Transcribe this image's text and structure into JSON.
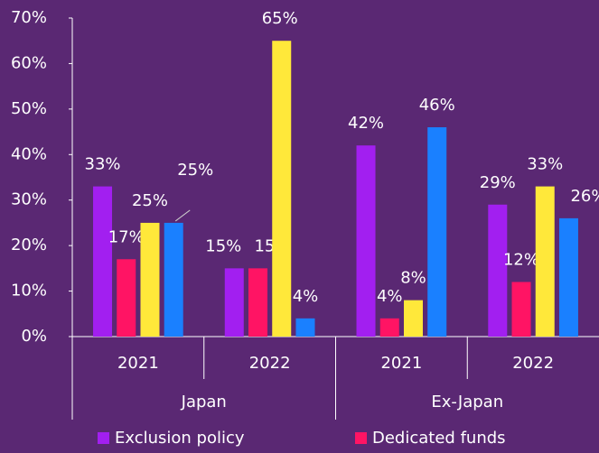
{
  "chart_data": {
    "type": "bar",
    "categories": [
      "2021",
      "2022",
      "2021",
      "2022"
    ],
    "category_groups": [
      "Japan",
      "Ex-Japan"
    ],
    "series": [
      {
        "name": "Exclusion policy",
        "color": "#a21ff0",
        "values": [
          33,
          15,
          42,
          29
        ],
        "value_labels": [
          "33%",
          "15%",
          "42%",
          "29%"
        ]
      },
      {
        "name": "Dedicated funds",
        "color": "#ff1464",
        "values": [
          17,
          15,
          4,
          12
        ],
        "value_labels": [
          "17%",
          "15%",
          "4%",
          "12%"
        ]
      },
      {
        "color": "#ffe83a",
        "values": [
          25,
          65,
          8,
          33
        ],
        "value_labels": [
          "25%",
          "65%",
          "8%",
          "33%"
        ]
      },
      {
        "color": "#1a80ff",
        "values": [
          25,
          4,
          46,
          26
        ],
        "value_labels": [
          "25%",
          "4%",
          "46%",
          "26%"
        ]
      }
    ],
    "ylim": [
      0,
      70
    ],
    "yticks": [
      {
        "value": 0,
        "label": "0%"
      },
      {
        "value": 10,
        "label": "10%"
      },
      {
        "value": 20,
        "label": "20%"
      },
      {
        "value": 30,
        "label": "30%"
      },
      {
        "value": 40,
        "label": "40%"
      },
      {
        "value": 50,
        "label": "50%"
      },
      {
        "value": 60,
        "label": "60%"
      },
      {
        "value": 70,
        "label": "70%"
      }
    ],
    "legend": "bottom"
  }
}
